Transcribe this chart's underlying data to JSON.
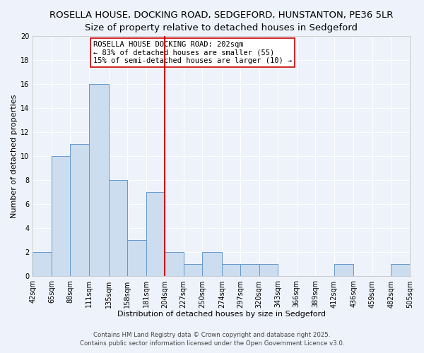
{
  "title_line1": "ROSELLA HOUSE, DOCKING ROAD, SEDGEFORD, HUNSTANTON, PE36 5LR",
  "title_line2": "Size of property relative to detached houses in Sedgeford",
  "xlabel": "Distribution of detached houses by size in Sedgeford",
  "ylabel": "Number of detached properties",
  "bin_edges": [
    42,
    65,
    88,
    111,
    135,
    158,
    181,
    204,
    227,
    250,
    274,
    297,
    320,
    343,
    366,
    389,
    412,
    436,
    459,
    482,
    505
  ],
  "bin_labels": [
    "42sqm",
    "65sqm",
    "88sqm",
    "111sqm",
    "135sqm",
    "158sqm",
    "181sqm",
    "204sqm",
    "227sqm",
    "250sqm",
    "274sqm",
    "297sqm",
    "320sqm",
    "343sqm",
    "366sqm",
    "389sqm",
    "412sqm",
    "436sqm",
    "459sqm",
    "482sqm",
    "505sqm"
  ],
  "counts": [
    2,
    10,
    11,
    16,
    8,
    3,
    7,
    2,
    1,
    2,
    1,
    1,
    1,
    0,
    0,
    0,
    1,
    0,
    0,
    1
  ],
  "bar_facecolor": "#ccddf0",
  "bar_edgecolor": "#6699cc",
  "background_color": "#eef2fb",
  "grid_color": "#ffffff",
  "vline_x": 204,
  "vline_color": "#cc0000",
  "ylim": [
    0,
    20
  ],
  "yticks": [
    0,
    2,
    4,
    6,
    8,
    10,
    12,
    14,
    16,
    18,
    20
  ],
  "annotation_title": "ROSELLA HOUSE DOCKING ROAD: 202sqm",
  "annotation_line2": "← 83% of detached houses are smaller (55)",
  "annotation_line3": "15% of semi-detached houses are larger (10) →",
  "annotation_box_edgecolor": "#cc0000",
  "footer_line1": "Contains HM Land Registry data © Crown copyright and database right 2025.",
  "footer_line2": "Contains public sector information licensed under the Open Government Licence v3.0.",
  "title_fontsize": 9.5,
  "subtitle_fontsize": 8.5,
  "axis_label_fontsize": 8,
  "tick_fontsize": 7,
  "annotation_fontsize": 7.5,
  "footer_fontsize": 6.2
}
